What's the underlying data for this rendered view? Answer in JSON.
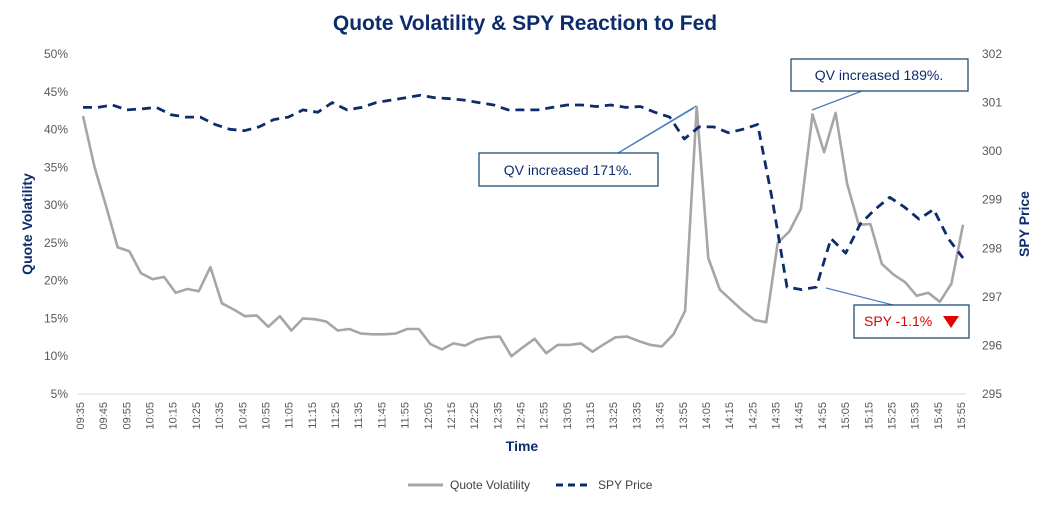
{
  "chart_data": {
    "type": "line",
    "title": "Quote Volatility & SPY Reaction to Fed",
    "xlabel": "Time",
    "ylabel_left": "Quote Volatility",
    "ylabel_right": "SPY Price",
    "left_axis": {
      "min": 5,
      "max": 50,
      "ticks": [
        "5%",
        "10%",
        "15%",
        "20%",
        "25%",
        "30%",
        "35%",
        "40%",
        "45%",
        "50%"
      ]
    },
    "right_axis": {
      "min": 295,
      "max": 302,
      "ticks": [
        "295",
        "296",
        "297",
        "298",
        "299",
        "300",
        "301",
        "302"
      ]
    },
    "x_tick_labels": [
      "09:35",
      "09:45",
      "09:55",
      "10:05",
      "10:15",
      "10:25",
      "10:35",
      "10:45",
      "10:55",
      "11:05",
      "11:15",
      "11:25",
      "11:35",
      "11:45",
      "11:55",
      "12:05",
      "12:15",
      "12:25",
      "12:35",
      "12:45",
      "12:55",
      "13:05",
      "13:15",
      "13:25",
      "13:35",
      "13:45",
      "13:55",
      "14:05",
      "14:15",
      "14:25",
      "14:35",
      "14:45",
      "14:55",
      "15:05",
      "15:15",
      "15:25",
      "15:35",
      "15:45",
      "15:55"
    ],
    "series": [
      {
        "name": "Quote Volatility",
        "axis": "left",
        "color": "#a6a6a6",
        "style": "solid",
        "values": [
          41.8,
          35.0,
          29.8,
          24.4,
          23.9,
          21.0,
          20.2,
          20.5,
          18.4,
          18.9,
          18.6,
          21.8,
          17.0,
          16.2,
          15.3,
          15.4,
          13.9,
          15.3,
          13.4,
          15.0,
          14.9,
          14.6,
          13.4,
          13.6,
          13.0,
          12.9,
          12.9,
          13.0,
          13.6,
          13.6,
          11.6,
          10.9,
          11.7,
          11.4,
          12.2,
          12.5,
          12.6,
          10.0,
          11.2,
          12.3,
          10.4,
          11.5,
          11.5,
          11.7,
          10.6,
          11.6,
          12.5,
          12.6,
          12.0,
          11.5,
          11.3,
          12.9,
          16.0,
          43.0,
          23.0,
          18.8,
          17.4,
          16.0,
          14.8,
          14.5,
          25.0,
          26.5,
          29.5,
          42.0,
          37.0,
          42.2,
          32.8,
          27.4,
          27.5,
          22.2,
          20.8,
          19.8,
          18.0,
          18.4,
          17.2,
          19.6,
          27.4
        ]
      },
      {
        "name": "SPY Price",
        "axis": "right",
        "color": "#0d2c6c",
        "style": "dashed",
        "values": [
          300.9,
          300.9,
          300.95,
          300.85,
          300.87,
          300.9,
          300.75,
          300.7,
          300.7,
          300.55,
          300.45,
          300.42,
          300.5,
          300.65,
          300.7,
          300.85,
          300.8,
          301.0,
          300.85,
          300.9,
          301.0,
          301.05,
          301.1,
          301.15,
          301.1,
          301.08,
          301.05,
          301.0,
          300.95,
          300.85,
          300.85,
          300.85,
          300.9,
          300.95,
          300.95,
          300.92,
          300.95,
          300.9,
          300.92,
          300.8,
          300.7,
          300.25,
          300.5,
          300.5,
          300.38,
          300.45,
          300.55,
          299.0,
          297.2,
          297.15,
          297.2,
          298.2,
          297.9,
          298.5,
          298.8,
          299.05,
          298.85,
          298.6,
          298.8,
          298.2,
          297.8
        ]
      }
    ],
    "annotations": [
      {
        "text": "QV increased 171%."
      },
      {
        "text": "QV increased 189%."
      },
      {
        "text": "SPY -1.1%",
        "color": "#e00000",
        "marker": "down-triangle"
      }
    ],
    "legend": {
      "position": "bottom",
      "items": [
        "Quote Volatility",
        "SPY Price"
      ]
    },
    "grid": false
  }
}
